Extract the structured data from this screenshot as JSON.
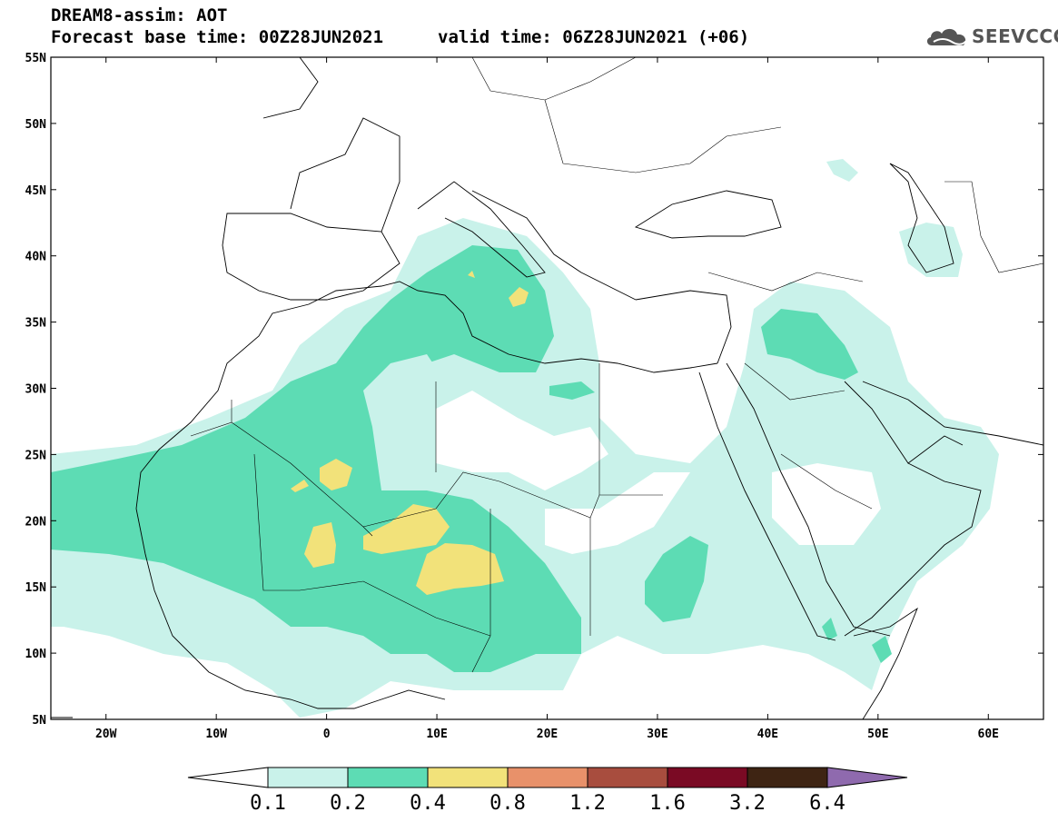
{
  "header": {
    "line1": "DREAM8-assim: AOT",
    "line2": "Forecast base time: 00Z28JUN2021",
    "line3": "valid time: 06Z28JUN2021 (+06)",
    "logo_text": "SEEVCCC"
  },
  "map": {
    "lon_range": [
      -25,
      65
    ],
    "lat_range": [
      5,
      55
    ],
    "lat_ticks": [
      {
        "value": 55,
        "label": "55N"
      },
      {
        "value": 50,
        "label": "50N"
      },
      {
        "value": 45,
        "label": "45N"
      },
      {
        "value": 40,
        "label": "40N"
      },
      {
        "value": 35,
        "label": "35N"
      },
      {
        "value": 30,
        "label": "30N"
      },
      {
        "value": 25,
        "label": "25N"
      },
      {
        "value": 20,
        "label": "20N"
      },
      {
        "value": 15,
        "label": "15N"
      },
      {
        "value": 10,
        "label": "10N"
      },
      {
        "value": 5,
        "label": "5N"
      }
    ],
    "lon_ticks": [
      {
        "value": -20,
        "label": "20W"
      },
      {
        "value": -10,
        "label": "10W"
      },
      {
        "value": 0,
        "label": "0"
      },
      {
        "value": 10,
        "label": "10E"
      },
      {
        "value": 20,
        "label": "20E"
      },
      {
        "value": 30,
        "label": "30E"
      },
      {
        "value": 40,
        "label": "40E"
      },
      {
        "value": 50,
        "label": "50E"
      },
      {
        "value": 60,
        "label": "60E"
      }
    ]
  },
  "colorbar": {
    "labels": [
      "0.1",
      "0.2",
      "0.4",
      "0.8",
      "1.2",
      "1.6",
      "3.2",
      "6.4"
    ],
    "colors": [
      "#c9f2ea",
      "#5ddcb4",
      "#f2e27a",
      "#e8916a",
      "#a84d3e",
      "#7a0a24",
      "#3e2413",
      "#8f6aae"
    ]
  }
}
